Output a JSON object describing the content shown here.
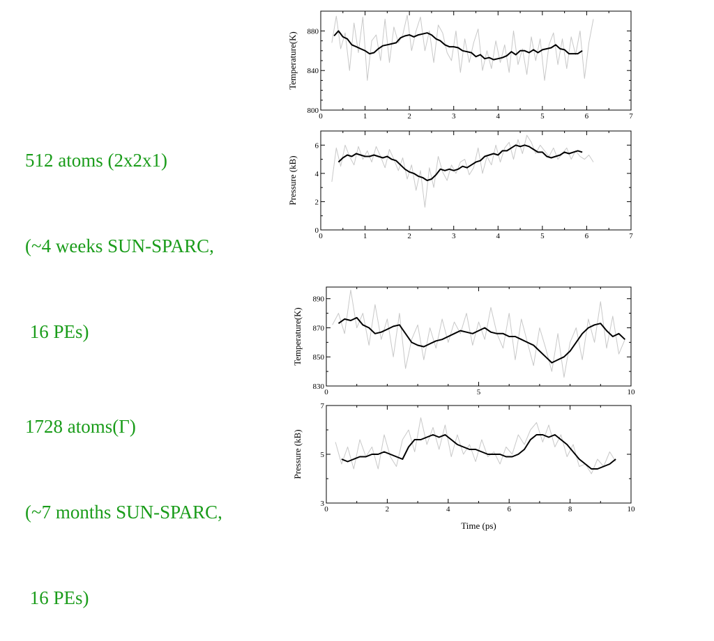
{
  "captions": [
    {
      "lines": [
        "512 atoms (2x2x1)",
        "(~4 weeks SUN-SPARC,",
        " 16 PEs)"
      ]
    },
    {
      "lines": [
        "1728 atoms(Γ)",
        "(~7 months SUN-SPARC,",
        " 16 PEs)"
      ]
    }
  ],
  "colors": {
    "caption": "#1a9c1a",
    "avg_line": "#000000",
    "raw_line": "#c8c8c8"
  },
  "chart_data": [
    {
      "type": "line",
      "ylabel": "Temperature(K)",
      "xlabel": "",
      "xlim": [
        0,
        7
      ],
      "ylim": [
        800,
        900
      ],
      "xticks": [
        0,
        1,
        2,
        3,
        4,
        5,
        6,
        7
      ],
      "yticks": [
        800,
        840,
        880
      ],
      "grid": false,
      "series": [
        {
          "role": "raw",
          "x": [
            0.25,
            0.35,
            0.45,
            0.55,
            0.65,
            0.75,
            0.85,
            0.95,
            1.05,
            1.15,
            1.25,
            1.35,
            1.45,
            1.55,
            1.65,
            1.75,
            1.85,
            1.95,
            2.05,
            2.15,
            2.25,
            2.35,
            2.45,
            2.55,
            2.65,
            2.75,
            2.85,
            2.95,
            3.05,
            3.15,
            3.25,
            3.35,
            3.45,
            3.55,
            3.65,
            3.75,
            3.85,
            3.95,
            4.05,
            4.15,
            4.25,
            4.35,
            4.45,
            4.55,
            4.65,
            4.75,
            4.85,
            4.95,
            5.05,
            5.15,
            5.25,
            5.35,
            5.45,
            5.55,
            5.65,
            5.75,
            5.85,
            5.95,
            6.05,
            6.15
          ],
          "y": [
            868,
            895,
            862,
            878,
            840,
            888,
            858,
            894,
            830,
            870,
            876,
            850,
            892,
            848,
            884,
            868,
            876,
            896,
            860,
            880,
            894,
            860,
            880,
            848,
            886,
            878,
            858,
            850,
            880,
            838,
            872,
            848,
            868,
            882,
            840,
            860,
            842,
            870,
            848,
            866,
            838,
            880,
            846,
            862,
            836,
            874,
            850,
            872,
            830,
            866,
            878,
            846,
            872,
            842,
            874,
            856,
            880,
            832,
            868,
            892
          ]
        },
        {
          "role": "average",
          "x": [
            0.3,
            0.4,
            0.5,
            0.6,
            0.7,
            0.8,
            0.9,
            1.0,
            1.1,
            1.2,
            1.3,
            1.4,
            1.5,
            1.6,
            1.7,
            1.8,
            1.9,
            2.0,
            2.1,
            2.2,
            2.3,
            2.4,
            2.5,
            2.6,
            2.7,
            2.8,
            2.9,
            3.0,
            3.1,
            3.2,
            3.3,
            3.4,
            3.5,
            3.6,
            3.7,
            3.8,
            3.9,
            4.0,
            4.1,
            4.2,
            4.3,
            4.4,
            4.5,
            4.6,
            4.7,
            4.8,
            4.9,
            5.0,
            5.1,
            5.2,
            5.3,
            5.4,
            5.5,
            5.6,
            5.7,
            5.8,
            5.9
          ],
          "y": [
            875,
            880,
            874,
            872,
            866,
            864,
            862,
            860,
            857,
            858,
            862,
            865,
            866,
            867,
            868,
            873,
            875,
            876,
            874,
            876,
            877,
            878,
            876,
            872,
            870,
            866,
            864,
            864,
            863,
            860,
            859,
            858,
            854,
            856,
            852,
            853,
            851,
            852,
            853,
            855,
            859,
            856,
            860,
            860,
            858,
            861,
            858,
            861,
            862,
            863,
            866,
            862,
            861,
            857,
            857,
            857,
            860
          ]
        }
      ]
    },
    {
      "type": "line",
      "ylabel": "Pressure (kB)",
      "xlabel": "",
      "xlim": [
        0,
        7
      ],
      "ylim": [
        0,
        7
      ],
      "xticks": [
        0,
        1,
        2,
        3,
        4,
        5,
        6,
        7
      ],
      "yticks": [
        0,
        2,
        4,
        6
      ],
      "grid": false,
      "series": [
        {
          "role": "raw",
          "x": [
            0.25,
            0.35,
            0.45,
            0.55,
            0.65,
            0.75,
            0.85,
            0.95,
            1.05,
            1.15,
            1.25,
            1.35,
            1.45,
            1.55,
            1.65,
            1.75,
            1.85,
            1.95,
            2.05,
            2.15,
            2.25,
            2.35,
            2.45,
            2.55,
            2.65,
            2.75,
            2.85,
            2.95,
            3.05,
            3.15,
            3.25,
            3.35,
            3.45,
            3.55,
            3.65,
            3.75,
            3.85,
            3.95,
            4.05,
            4.15,
            4.25,
            4.35,
            4.45,
            4.55,
            4.65,
            4.75,
            4.85,
            4.95,
            5.05,
            5.15,
            5.25,
            5.35,
            5.45,
            5.55,
            5.65,
            5.75,
            5.85,
            5.95,
            6.05,
            6.15
          ],
          "y": [
            3.4,
            5.8,
            4.5,
            6.0,
            5.2,
            4.6,
            5.9,
            5.0,
            5.6,
            4.8,
            5.9,
            5.2,
            4.4,
            5.7,
            5.0,
            4.2,
            5.1,
            3.6,
            4.6,
            2.8,
            4.2,
            1.6,
            4.4,
            3.0,
            5.2,
            4.1,
            3.5,
            4.6,
            4.0,
            4.8,
            5.0,
            3.9,
            4.4,
            5.8,
            4.0,
            5.2,
            4.6,
            6.0,
            4.8,
            5.8,
            6.2,
            5.0,
            6.4,
            5.4,
            6.7,
            6.2,
            5.4,
            6.0,
            5.6,
            5.2,
            5.8,
            5.0,
            5.4,
            5.8,
            5.0,
            5.6,
            5.2,
            5.0,
            5.3,
            4.8
          ]
        },
        {
          "role": "average",
          "x": [
            0.4,
            0.5,
            0.6,
            0.7,
            0.8,
            0.9,
            1.0,
            1.1,
            1.2,
            1.3,
            1.4,
            1.5,
            1.6,
            1.7,
            1.8,
            1.9,
            2.0,
            2.1,
            2.2,
            2.3,
            2.4,
            2.5,
            2.6,
            2.7,
            2.8,
            2.9,
            3.0,
            3.1,
            3.2,
            3.3,
            3.4,
            3.5,
            3.6,
            3.7,
            3.8,
            3.9,
            4.0,
            4.1,
            4.2,
            4.3,
            4.4,
            4.5,
            4.6,
            4.7,
            4.8,
            4.9,
            5.0,
            5.1,
            5.2,
            5.3,
            5.4,
            5.5,
            5.6,
            5.7,
            5.8,
            5.9
          ],
          "y": [
            4.8,
            5.1,
            5.3,
            5.2,
            5.4,
            5.3,
            5.2,
            5.2,
            5.3,
            5.2,
            5.1,
            5.2,
            5.0,
            4.9,
            4.6,
            4.3,
            4.1,
            4.0,
            3.8,
            3.7,
            3.5,
            3.6,
            3.9,
            4.3,
            4.2,
            4.3,
            4.2,
            4.3,
            4.5,
            4.4,
            4.6,
            4.8,
            4.9,
            5.2,
            5.3,
            5.4,
            5.3,
            5.6,
            5.6,
            5.8,
            6.0,
            5.9,
            6.0,
            5.9,
            5.7,
            5.5,
            5.5,
            5.2,
            5.1,
            5.2,
            5.3,
            5.5,
            5.4,
            5.5,
            5.6,
            5.5
          ]
        }
      ]
    },
    {
      "type": "line",
      "ylabel": "Temperature(K)",
      "xlabel": "",
      "xlim": [
        0,
        10
      ],
      "ylim": [
        830,
        898
      ],
      "xticks": [
        0,
        5,
        10
      ],
      "yticks": [
        830,
        850,
        870,
        890
      ],
      "grid": false,
      "series": [
        {
          "role": "raw",
          "x": [
            0.2,
            0.4,
            0.6,
            0.8,
            1.0,
            1.2,
            1.4,
            1.6,
            1.8,
            2.0,
            2.2,
            2.4,
            2.6,
            2.8,
            3.0,
            3.2,
            3.4,
            3.6,
            3.8,
            4.0,
            4.2,
            4.4,
            4.6,
            4.8,
            5.0,
            5.2,
            5.4,
            5.6,
            5.8,
            6.0,
            6.2,
            6.4,
            6.6,
            6.8,
            7.0,
            7.2,
            7.4,
            7.6,
            7.8,
            8.0,
            8.2,
            8.4,
            8.6,
            8.8,
            9.0,
            9.2,
            9.4,
            9.6,
            9.8
          ],
          "y": [
            872,
            880,
            866,
            896,
            870,
            880,
            858,
            886,
            862,
            876,
            850,
            880,
            842,
            862,
            872,
            848,
            870,
            856,
            876,
            860,
            874,
            866,
            880,
            858,
            874,
            862,
            884,
            866,
            856,
            880,
            848,
            876,
            860,
            844,
            870,
            856,
            840,
            866,
            836,
            860,
            870,
            848,
            876,
            860,
            888,
            856,
            878,
            852,
            862
          ]
        },
        {
          "role": "average",
          "x": [
            0.4,
            0.6,
            0.8,
            1.0,
            1.2,
            1.4,
            1.6,
            1.8,
            2.0,
            2.2,
            2.4,
            2.6,
            2.8,
            3.0,
            3.2,
            3.4,
            3.6,
            3.8,
            4.0,
            4.2,
            4.4,
            4.6,
            4.8,
            5.0,
            5.2,
            5.4,
            5.6,
            5.8,
            6.0,
            6.2,
            6.4,
            6.6,
            6.8,
            7.0,
            7.2,
            7.4,
            7.6,
            7.8,
            8.0,
            8.2,
            8.4,
            8.6,
            8.8,
            9.0,
            9.2,
            9.4,
            9.6,
            9.8
          ],
          "y": [
            873,
            876,
            875,
            877,
            872,
            870,
            866,
            867,
            869,
            871,
            872,
            866,
            860,
            858,
            857,
            859,
            861,
            862,
            864,
            866,
            868,
            867,
            866,
            868,
            870,
            867,
            866,
            866,
            864,
            864,
            862,
            860,
            858,
            854,
            850,
            846,
            848,
            850,
            854,
            860,
            866,
            870,
            872,
            873,
            868,
            864,
            866,
            862
          ]
        }
      ]
    },
    {
      "type": "line",
      "ylabel": "Pressure (kB)",
      "xlabel": "Time (ps)",
      "xlim": [
        0,
        10
      ],
      "ylim": [
        3,
        7
      ],
      "xticks": [
        0,
        2,
        4,
        6,
        8,
        10
      ],
      "yticks": [
        3,
        5,
        7
      ],
      "grid": false,
      "series": [
        {
          "role": "raw",
          "x": [
            0.3,
            0.5,
            0.7,
            0.9,
            1.1,
            1.3,
            1.5,
            1.7,
            1.9,
            2.1,
            2.3,
            2.5,
            2.7,
            2.9,
            3.1,
            3.3,
            3.5,
            3.7,
            3.9,
            4.1,
            4.3,
            4.5,
            4.7,
            4.9,
            5.1,
            5.3,
            5.5,
            5.7,
            5.9,
            6.1,
            6.3,
            6.5,
            6.7,
            6.9,
            7.1,
            7.3,
            7.5,
            7.7,
            7.9,
            8.1,
            8.3,
            8.5,
            8.7,
            8.9,
            9.1,
            9.3,
            9.5
          ],
          "y": [
            5.5,
            4.6,
            5.3,
            4.4,
            5.6,
            4.9,
            5.3,
            4.4,
            5.8,
            4.9,
            4.5,
            5.6,
            6.0,
            5.1,
            6.5,
            5.4,
            6.1,
            5.2,
            6.2,
            4.9,
            5.8,
            5.0,
            5.4,
            4.7,
            5.6,
            4.9,
            5.1,
            4.6,
            5.3,
            5.0,
            5.8,
            5.4,
            6.0,
            6.3,
            5.5,
            6.2,
            5.3,
            5.8,
            4.9,
            5.4,
            4.5,
            4.6,
            4.2,
            4.8,
            4.5,
            5.1,
            4.7
          ]
        },
        {
          "role": "average",
          "x": [
            0.5,
            0.7,
            0.9,
            1.1,
            1.3,
            1.5,
            1.7,
            1.9,
            2.1,
            2.3,
            2.5,
            2.7,
            2.9,
            3.1,
            3.3,
            3.5,
            3.7,
            3.9,
            4.1,
            4.3,
            4.5,
            4.7,
            4.9,
            5.1,
            5.3,
            5.5,
            5.7,
            5.9,
            6.1,
            6.3,
            6.5,
            6.7,
            6.9,
            7.1,
            7.3,
            7.5,
            7.7,
            7.9,
            8.1,
            8.3,
            8.5,
            8.7,
            8.9,
            9.1,
            9.3,
            9.5
          ],
          "y": [
            4.8,
            4.7,
            4.8,
            4.9,
            4.9,
            5.0,
            5.0,
            5.1,
            5.0,
            4.9,
            4.8,
            5.3,
            5.6,
            5.6,
            5.7,
            5.8,
            5.7,
            5.8,
            5.6,
            5.4,
            5.3,
            5.2,
            5.2,
            5.1,
            5.0,
            5.0,
            5.0,
            4.9,
            4.9,
            5.0,
            5.2,
            5.6,
            5.8,
            5.8,
            5.7,
            5.8,
            5.6,
            5.4,
            5.1,
            4.8,
            4.6,
            4.4,
            4.4,
            4.5,
            4.6,
            4.8
          ]
        }
      ]
    }
  ]
}
